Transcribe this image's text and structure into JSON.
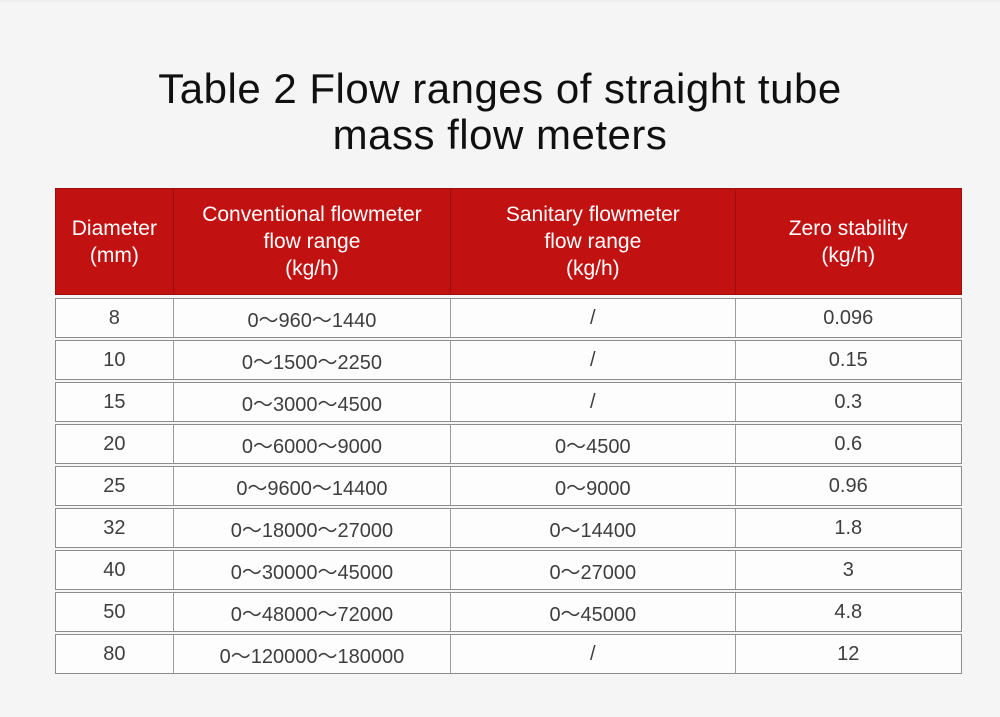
{
  "page": {
    "background_color": "#f5f5f6"
  },
  "title": {
    "line1": "Table 2 Flow ranges of straight tube",
    "line2": "mass flow meters"
  },
  "table": {
    "accent_color": "#c21111",
    "header_text_color": "#ffffff",
    "row_border_color": "#8d8d8d",
    "columns": [
      {
        "name": "diameter",
        "lines": [
          "Diameter",
          "(mm)"
        ]
      },
      {
        "name": "conventional_flow_range",
        "lines": [
          "Conventional flowmeter",
          "flow range",
          "(kg/h)"
        ]
      },
      {
        "name": "sanitary_flow_range",
        "lines": [
          "Sanitary flowmeter",
          "flow range",
          "(kg/h)"
        ]
      },
      {
        "name": "zero_stability",
        "lines": [
          "Zero stability",
          "(kg/h)"
        ]
      }
    ],
    "rows": [
      [
        "8",
        "0～960～1440",
        "/",
        "0.096"
      ],
      [
        "10",
        "0～1500～2250",
        "/",
        "0.15"
      ],
      [
        "15",
        "0～3000～4500",
        "/",
        "0.3"
      ],
      [
        "20",
        "0～6000～9000",
        "0～4500",
        "0.6"
      ],
      [
        "25",
        "0～9600～14400",
        "0～9000",
        "0.96"
      ],
      [
        "32",
        "0～18000～27000",
        "0～14400",
        "1.8"
      ],
      [
        "40",
        "0～30000～45000",
        "0～27000",
        "3"
      ],
      [
        "50",
        "0～48000～72000",
        "0～45000",
        "4.8"
      ],
      [
        "80",
        "0～120000～180000",
        "/",
        "12"
      ]
    ]
  }
}
